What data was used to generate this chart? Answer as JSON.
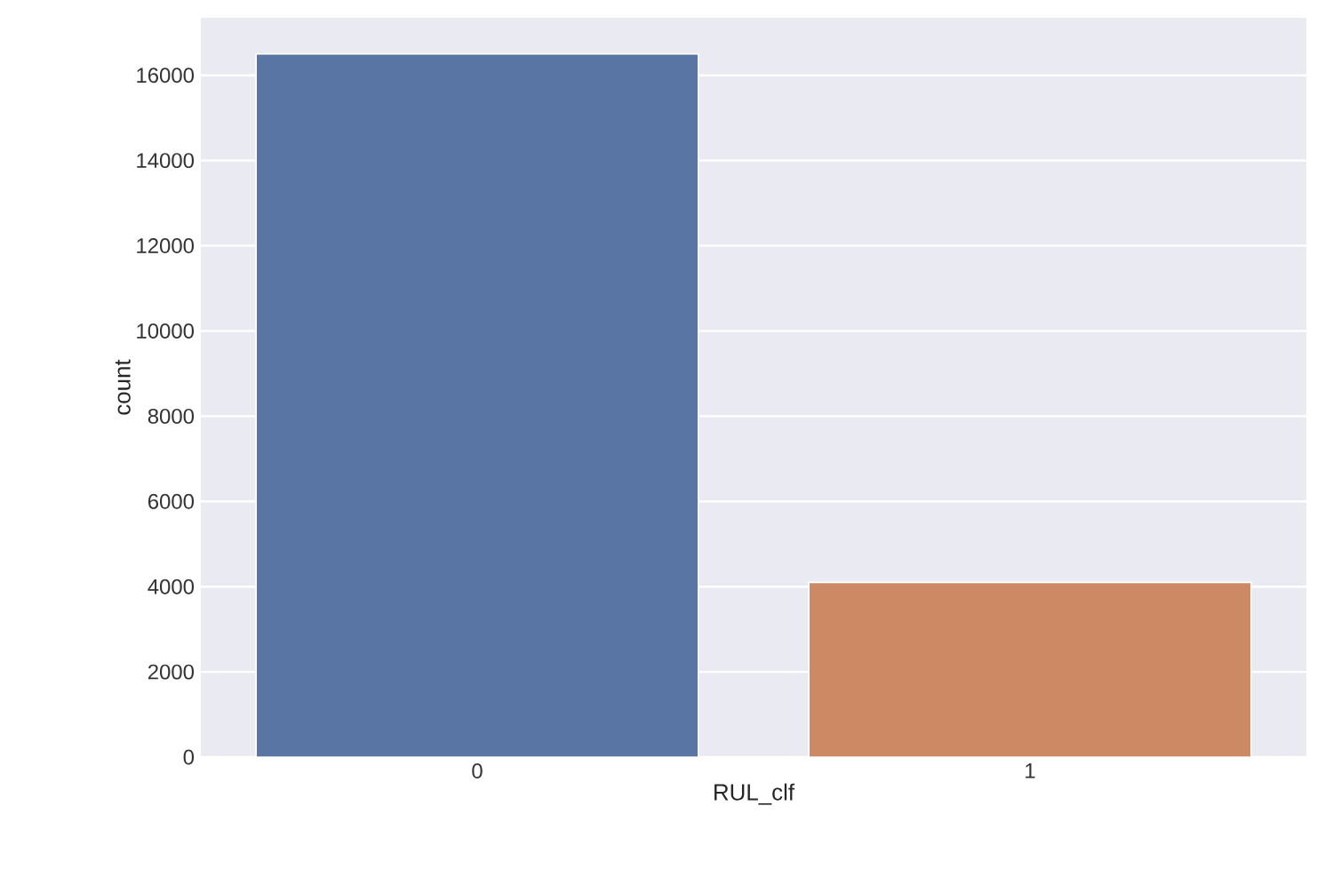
{
  "chart_data": {
    "type": "bar",
    "xlabel": "RUL_clf",
    "ylabel": "count",
    "categories": [
      "0",
      "1"
    ],
    "values": [
      16500,
      4100
    ],
    "colors": [
      "#5975a4",
      "#cc8963"
    ],
    "ylim": [
      0,
      17350
    ],
    "yticks": [
      0,
      2000,
      4000,
      6000,
      8000,
      10000,
      12000,
      14000,
      16000
    ],
    "grid": "y"
  }
}
